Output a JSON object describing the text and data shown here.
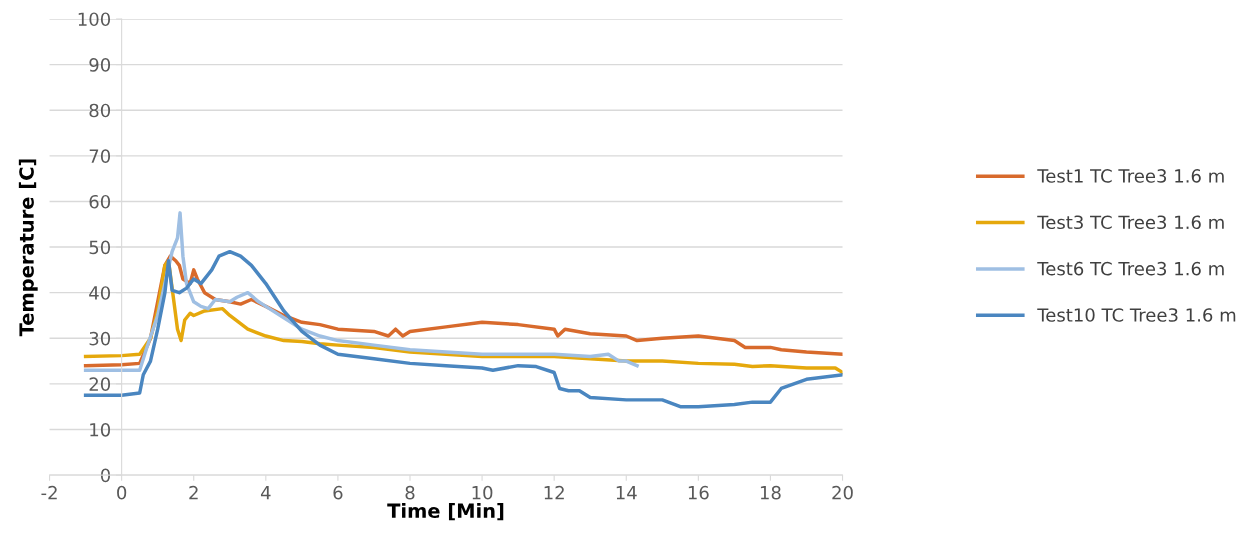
{
  "chart_data": {
    "type": "line",
    "xlabel": "Time [Min]",
    "ylabel": "Temperature [C]",
    "xlim": [
      -2,
      20
    ],
    "xticks": [
      -2,
      0,
      2,
      4,
      6,
      8,
      10,
      12,
      14,
      16,
      18,
      20
    ],
    "ylim": [
      0,
      100
    ],
    "yticks": [
      0,
      10,
      20,
      30,
      40,
      50,
      60,
      70,
      80,
      90,
      100
    ],
    "grid": "y",
    "legend": "right",
    "marker": "none",
    "line_style": "solid",
    "series": [
      {
        "name": "Test1 TC Tree3 1.6 m",
        "color": "#d86a2c",
        "x": [
          -1,
          0,
          0.5,
          0.8,
          1.0,
          1.2,
          1.35,
          1.5,
          1.6,
          1.7,
          1.9,
          2.0,
          2.1,
          2.3,
          2.6,
          3,
          3.3,
          3.6,
          4,
          4.5,
          5,
          5.5,
          6,
          7,
          7.4,
          7.6,
          7.8,
          8,
          9,
          10,
          11,
          12,
          12.1,
          12.3,
          13,
          14,
          14.3,
          15,
          16,
          17,
          17.3,
          18,
          18.3,
          19,
          20
        ],
        "values": [
          24,
          24.2,
          24.5,
          30,
          38,
          46,
          48,
          47,
          46,
          43,
          42,
          45,
          43,
          40,
          38.5,
          38,
          37.5,
          38.5,
          37,
          35,
          33.5,
          33,
          32,
          31.5,
          30.5,
          32,
          30.5,
          31.5,
          32.5,
          33.5,
          33,
          32,
          30.5,
          32,
          31,
          30.5,
          29.5,
          30,
          30.5,
          29.5,
          28,
          28,
          27.5,
          27,
          26.5
        ]
      },
      {
        "name": "Test3 TC Tree3 1.6 m",
        "color": "#e5a80c",
        "x": [
          -1,
          0,
          0.5,
          0.8,
          1.0,
          1.2,
          1.3,
          1.45,
          1.55,
          1.65,
          1.75,
          1.9,
          2.0,
          2.3,
          2.8,
          3.0,
          3.5,
          4,
          4.5,
          5,
          5.5,
          6,
          7,
          8,
          9,
          10,
          11,
          12,
          13,
          14,
          15,
          16,
          17,
          17.5,
          18,
          19,
          19.8,
          20
        ],
        "values": [
          26,
          26.2,
          26.5,
          30,
          36,
          46,
          47,
          38,
          32,
          29.5,
          34,
          35.5,
          35,
          36,
          36.5,
          35,
          32,
          30.5,
          29.5,
          29.3,
          28.8,
          28.5,
          28,
          27,
          26.5,
          26,
          26,
          26,
          25.5,
          25,
          25,
          24.5,
          24.3,
          23.8,
          24,
          23.5,
          23.5,
          22.5
        ]
      },
      {
        "name": "Test6 TC Tree3 1.6 m",
        "color": "#9fbfe3",
        "x": [
          -1,
          0,
          0.5,
          0.7,
          1.0,
          1.2,
          1.4,
          1.55,
          1.62,
          1.7,
          1.8,
          2.0,
          2.2,
          2.4,
          2.6,
          3,
          3.2,
          3.5,
          3.8,
          4,
          4.5,
          5,
          5.5,
          6,
          7,
          8,
          9,
          10,
          11,
          12,
          13,
          13.5,
          13.8,
          14,
          14.3
        ],
        "values": [
          23,
          23,
          23,
          28,
          35,
          42,
          49,
          52,
          57.5,
          48,
          42,
          38,
          37,
          36.5,
          38.5,
          38,
          39,
          40,
          38,
          37,
          34.5,
          32,
          30.5,
          29.5,
          28.5,
          27.5,
          27,
          26.5,
          26.5,
          26.5,
          26,
          26.5,
          25,
          25,
          24
        ]
      },
      {
        "name": "Test10 TC Tree3 1.6 m",
        "color": "#4a86c0",
        "x": [
          -1,
          0,
          0.5,
          0.6,
          0.8,
          1.0,
          1.2,
          1.3,
          1.4,
          1.6,
          1.8,
          2.0,
          2.2,
          2.5,
          2.7,
          3.0,
          3.3,
          3.6,
          4,
          4.5,
          5,
          5.5,
          6,
          7,
          8,
          9,
          10,
          10.3,
          11,
          11.5,
          12,
          12.15,
          12.4,
          12.7,
          13,
          14,
          15,
          15.5,
          16,
          17,
          17.5,
          18,
          18.3,
          19,
          20
        ],
        "values": [
          17.5,
          17.5,
          18,
          22,
          25,
          32,
          40,
          47,
          40.5,
          40,
          41,
          43,
          42,
          45,
          48,
          49,
          48,
          46,
          42,
          36,
          31.5,
          28.5,
          26.5,
          25.5,
          24.5,
          24,
          23.5,
          23,
          24,
          23.8,
          22.5,
          19,
          18.5,
          18.5,
          17,
          16.5,
          16.5,
          15,
          15,
          15.5,
          16,
          16,
          19,
          21,
          22
        ]
      }
    ]
  }
}
